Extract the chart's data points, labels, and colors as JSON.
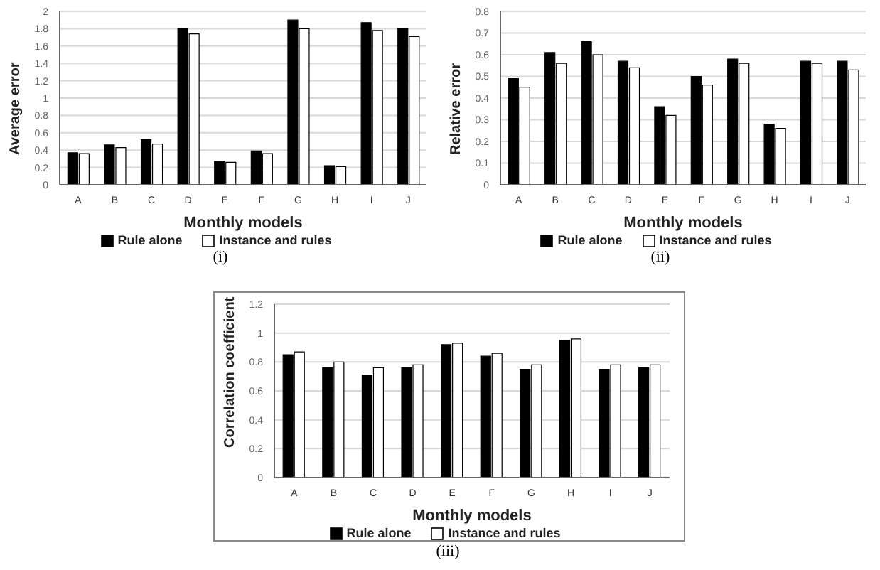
{
  "chart_data": [
    {
      "type": "bar",
      "xlabel": "Monthly models",
      "ylabel": "Average error",
      "categories": [
        "A",
        "B",
        "C",
        "D",
        "E",
        "F",
        "G",
        "H",
        "I",
        "J"
      ],
      "series": [
        {
          "name": "Rule alone",
          "color": "#000000",
          "values": [
            0.37,
            0.46,
            0.52,
            1.8,
            0.27,
            0.39,
            1.9,
            0.22,
            1.87,
            1.8
          ]
        },
        {
          "name": "Instance and rules",
          "color": "#ffffff",
          "values": [
            0.36,
            0.43,
            0.47,
            1.74,
            0.26,
            0.36,
            1.8,
            0.21,
            1.78,
            1.71
          ]
        }
      ],
      "ylim": [
        0,
        2
      ],
      "yticks": [
        0,
        0.2,
        0.4,
        0.6,
        0.8,
        1,
        1.2,
        1.4,
        1.6,
        1.8,
        2
      ],
      "grid": "y",
      "legend": "bottom",
      "annotations": [
        "(i)"
      ]
    },
    {
      "type": "bar",
      "xlabel": "Monthly models",
      "ylabel": "Relative error",
      "categories": [
        "A",
        "B",
        "C",
        "D",
        "E",
        "F",
        "G",
        "H",
        "I",
        "J"
      ],
      "series": [
        {
          "name": "Rule alone",
          "color": "#000000",
          "values": [
            0.49,
            0.61,
            0.66,
            0.57,
            0.36,
            0.5,
            0.58,
            0.28,
            0.57,
            0.57
          ]
        },
        {
          "name": "Instance and rules",
          "color": "#ffffff",
          "values": [
            0.45,
            0.56,
            0.6,
            0.54,
            0.32,
            0.46,
            0.56,
            0.26,
            0.56,
            0.53
          ]
        }
      ],
      "ylim": [
        0,
        0.8
      ],
      "yticks": [
        0,
        0.1,
        0.2,
        0.3,
        0.4,
        0.5,
        0.6,
        0.7,
        0.8
      ],
      "grid": "y",
      "legend": "bottom",
      "annotations": [
        "(ii)"
      ]
    },
    {
      "type": "bar",
      "xlabel": "Monthly models",
      "ylabel": "Correlation coefficient",
      "categories": [
        "A",
        "B",
        "C",
        "D",
        "E",
        "F",
        "G",
        "H",
        "I",
        "J"
      ],
      "series": [
        {
          "name": "Rule alone",
          "color": "#000000",
          "values": [
            0.85,
            0.76,
            0.71,
            0.76,
            0.92,
            0.84,
            0.75,
            0.95,
            0.75,
            0.76
          ]
        },
        {
          "name": "Instance and rules",
          "color": "#ffffff",
          "values": [
            0.87,
            0.8,
            0.76,
            0.78,
            0.93,
            0.86,
            0.78,
            0.96,
            0.78,
            0.78
          ]
        }
      ],
      "ylim": [
        0,
        1.2
      ],
      "yticks": [
        0,
        0.2,
        0.4,
        0.6,
        0.8,
        1,
        1.2
      ],
      "grid": "y",
      "legend": "bottom",
      "annotations": [
        "(iii)"
      ]
    }
  ]
}
